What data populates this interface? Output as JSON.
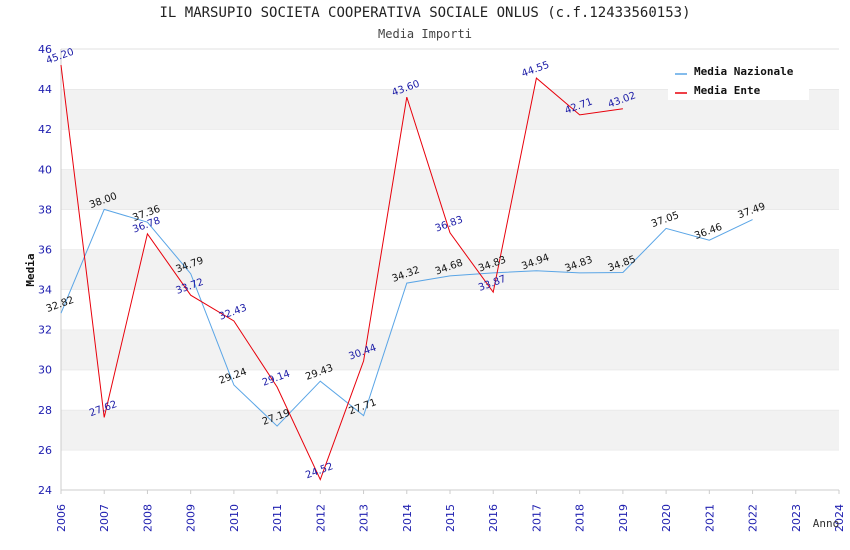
{
  "chart_data": {
    "type": "line",
    "title": "IL MARSUPIO SOCIETA COOPERATIVA SOCIALE ONLUS (c.f.12433560153)",
    "subtitle": "Media Importi",
    "xlabel": "Anno",
    "ylabel": "Media",
    "xlim": [
      2006,
      2024
    ],
    "ylim": [
      24,
      46
    ],
    "x_ticks": [
      "2006",
      "2007",
      "2008",
      "2009",
      "2010",
      "2011",
      "2012",
      "2013",
      "2014",
      "2015",
      "2016",
      "2017",
      "2018",
      "2019",
      "2020",
      "2021",
      "2022",
      "2023",
      "2024"
    ],
    "y_ticks": [
      "24",
      "26",
      "28",
      "30",
      "32",
      "34",
      "36",
      "38",
      "40",
      "42",
      "44",
      "46"
    ],
    "grid": "horizontal bands",
    "legend_position": "top-right",
    "series": [
      {
        "name": "Media Nazionale",
        "color": "#5aa5e6",
        "label_color": "#111111",
        "x": [
          2006,
          2007,
          2008,
          2009,
          2010,
          2011,
          2012,
          2013,
          2014,
          2015,
          2016,
          2017,
          2018,
          2019,
          2020,
          2021,
          2022
        ],
        "values": [
          32.82,
          38.0,
          37.36,
          34.79,
          29.24,
          27.19,
          29.43,
          27.71,
          34.32,
          34.68,
          34.83,
          34.94,
          34.83,
          34.85,
          37.05,
          36.46,
          37.49
        ],
        "labels": [
          "32.82",
          "38.00",
          "37.36",
          "34.79",
          "29.24",
          "27.19",
          "29.43",
          "27.71",
          "34.32",
          "34.68",
          "34.83",
          "34.94",
          "34.83",
          "34.85",
          "37.05",
          "36.46",
          "37.49"
        ]
      },
      {
        "name": "Media Ente",
        "color": "#e8000b",
        "label_color": "#1a1aa6",
        "x": [
          2006,
          2007,
          2008,
          2009,
          2010,
          2011,
          2012,
          2013,
          2014,
          2015,
          2016,
          2017,
          2018,
          2019
        ],
        "values": [
          45.2,
          27.62,
          36.78,
          33.72,
          32.43,
          29.14,
          24.52,
          30.44,
          43.6,
          36.83,
          33.87,
          44.55,
          42.71,
          43.02
        ],
        "labels": [
          "45.20",
          "27.62",
          "36.78",
          "33.72",
          "32.43",
          "29.14",
          "24.52",
          "30.44",
          "43.60",
          "36.83",
          "33.87",
          "44.55",
          "42.71",
          "43.02"
        ]
      }
    ]
  }
}
